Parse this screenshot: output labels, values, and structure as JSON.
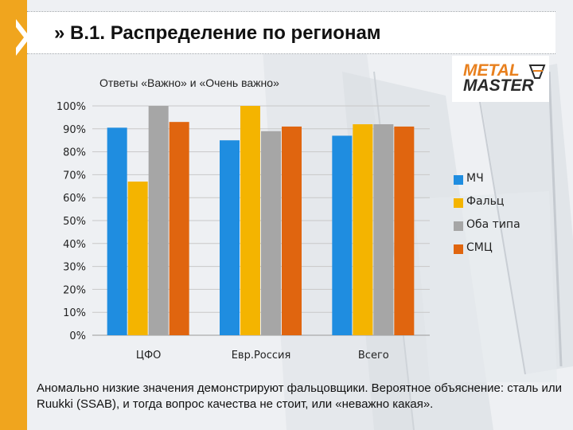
{
  "slide": {
    "title": "» В.1. Распределение по регионам",
    "subtitle": "Ответы «Важно» и «Очень важно»",
    "footer": "Аномально низкие значения демонстрируют фальцовщики. Вероятное объяснение: сталь или Ruukki (SSAB), и тогда вопрос качества не стоит, или «неважно какая».",
    "logo": {
      "line1": "METAL",
      "line2": "MASTER"
    },
    "accent_color": "#f0a51e"
  },
  "chart_data": {
    "type": "bar",
    "title": "Ответы «Важно» и «Очень важно»",
    "categories": [
      "ЦФО",
      "Евр.Россия",
      "Всего"
    ],
    "series": [
      {
        "name": "МЧ",
        "color": "#1f8de0",
        "values": [
          90.5,
          85,
          87
        ]
      },
      {
        "name": "Фальц",
        "color": "#f4b400",
        "values": [
          67,
          100,
          92
        ]
      },
      {
        "name": "Оба типа",
        "color": "#a6a6a6",
        "values": [
          100,
          89,
          92
        ]
      },
      {
        "name": "СМЦ",
        "color": "#e0650f",
        "values": [
          93,
          91,
          91
        ]
      }
    ],
    "ylim": [
      0,
      100
    ],
    "yticks": [
      "0%",
      "10%",
      "20%",
      "30%",
      "40%",
      "50%",
      "60%",
      "70%",
      "80%",
      "90%",
      "100%"
    ],
    "grid": true,
    "legend_position": "right"
  }
}
